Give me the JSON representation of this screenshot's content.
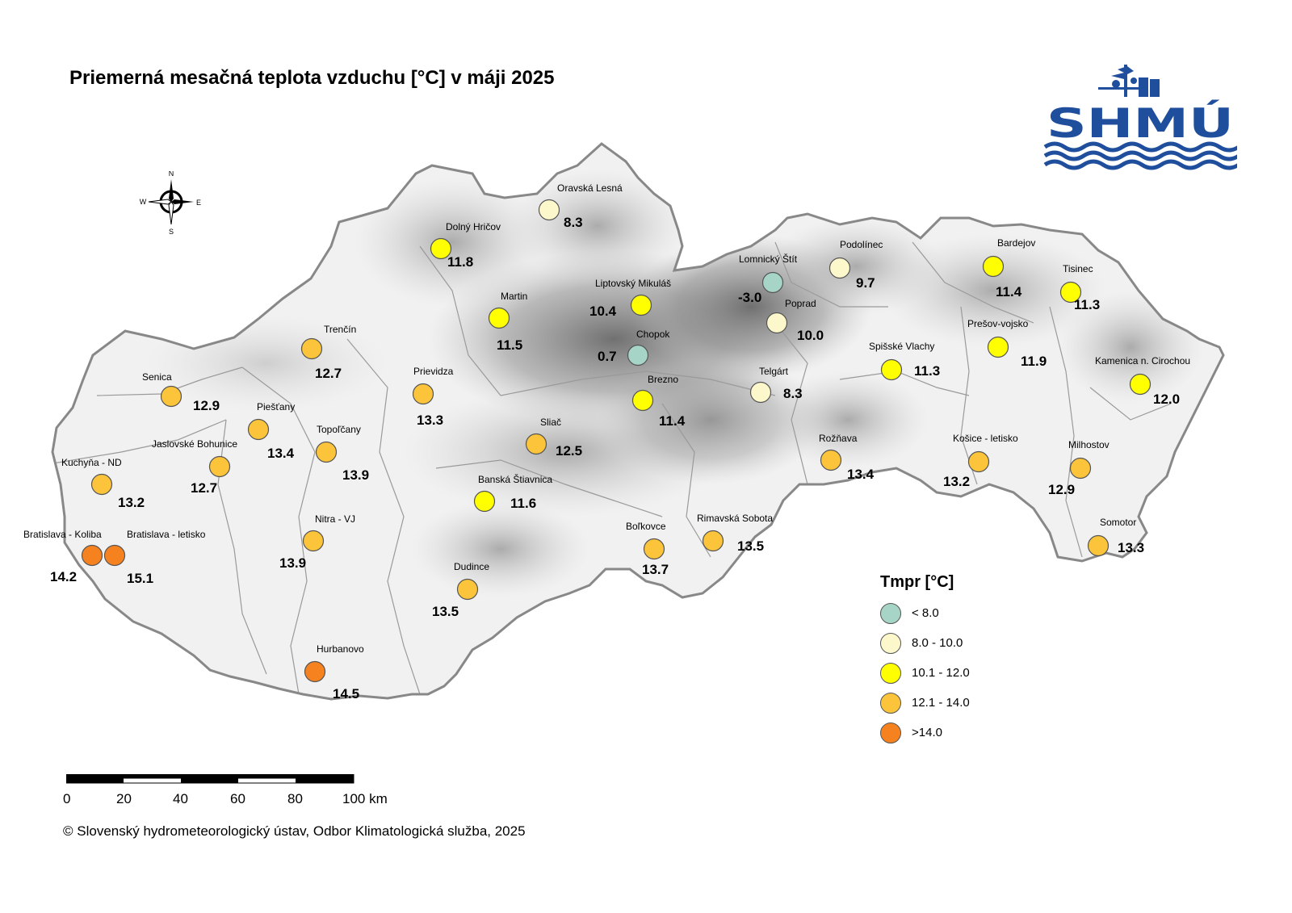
{
  "title": "Priemerná mesačná teplota vzduchu [°C] v máji 2025",
  "logo": {
    "text": "SHMÚ"
  },
  "compass": {
    "n": "N",
    "e": "E",
    "s": "S",
    "w": "W"
  },
  "colors": {
    "lt8": "#a6d4c7",
    "8to10": "#fdf8cc",
    "10to12": "#ffff00",
    "12to14": "#fbc43a",
    "gt14": "#f6821f"
  },
  "stations": [
    {
      "name": "Oravská Lesná",
      "value": "8.3",
      "class": "8to10"
    },
    {
      "name": "Dolný Hričov",
      "value": "11.8",
      "class": "10to12"
    },
    {
      "name": "Martin",
      "value": "11.5",
      "class": "10to12"
    },
    {
      "name": "Liptovský Mikuláš",
      "value": "10.4",
      "class": "10to12"
    },
    {
      "name": "Lomnický Štít",
      "value": "-3.0",
      "class": "lt8"
    },
    {
      "name": "Podolínec",
      "value": "9.7",
      "class": "8to10"
    },
    {
      "name": "Poprad",
      "value": "10.0",
      "class": "8to10"
    },
    {
      "name": "Bardejov",
      "value": "11.4",
      "class": "10to12"
    },
    {
      "name": "Tisinec",
      "value": "11.3",
      "class": "10to12"
    },
    {
      "name": "Prešov-vojsko",
      "value": "11.9",
      "class": "10to12"
    },
    {
      "name": "Kamenica n. Cirochou",
      "value": "12.0",
      "class": "10to12"
    },
    {
      "name": "Chopok",
      "value": "0.7",
      "class": "lt8"
    },
    {
      "name": "Trenčín",
      "value": "12.7",
      "class": "12to14"
    },
    {
      "name": "Senica",
      "value": "12.9",
      "class": "12to14"
    },
    {
      "name": "Prievidza",
      "value": "13.3",
      "class": "12to14"
    },
    {
      "name": "Piešťany",
      "value": "13.4",
      "class": "12to14"
    },
    {
      "name": "Spišské Vlachy",
      "value": "11.3",
      "class": "10to12"
    },
    {
      "name": "Telgárt",
      "value": "8.3",
      "class": "8to10"
    },
    {
      "name": "Brezno",
      "value": "11.4",
      "class": "10to12"
    },
    {
      "name": "Jaslovské Bohunice",
      "value": "12.7",
      "class": "12to14"
    },
    {
      "name": "Topoľčany",
      "value": "13.9",
      "class": "12to14"
    },
    {
      "name": "Sliač",
      "value": "12.5",
      "class": "12to14"
    },
    {
      "name": "Rožňava",
      "value": "13.4",
      "class": "12to14"
    },
    {
      "name": "Košice - letisko",
      "value": "13.2",
      "class": "12to14"
    },
    {
      "name": "Milhostov",
      "value": "12.9",
      "class": "12to14"
    },
    {
      "name": "Kuchyňa - ND",
      "value": "13.2",
      "class": "12to14"
    },
    {
      "name": "Banská Štiavnica",
      "value": "11.6",
      "class": "10to12"
    },
    {
      "name": "Nitra - VJ",
      "value": "13.9",
      "class": "12to14"
    },
    {
      "name": "Bratislava - Koliba",
      "value": "14.2",
      "class": "gt14"
    },
    {
      "name": "Bratislava - letisko",
      "value": "15.1",
      "class": "gt14"
    },
    {
      "name": "Boľkovce",
      "value": "13.7",
      "class": "12to14"
    },
    {
      "name": "Rimavská Sobota",
      "value": "13.5",
      "class": "12to14"
    },
    {
      "name": "Somotor",
      "value": "13.3",
      "class": "12to14"
    },
    {
      "name": "Dudince",
      "value": "13.5",
      "class": "12to14"
    },
    {
      "name": "Hurbanovo",
      "value": "14.5",
      "class": "gt14"
    }
  ],
  "legend": {
    "title": "Tmpr [°C]",
    "items": [
      {
        "label": "< 8.0",
        "color": "#a6d4c7"
      },
      {
        "label": "8.0 - 10.0",
        "color": "#fdf8cc"
      },
      {
        "label": "10.1 - 12.0",
        "color": "#ffff00"
      },
      {
        "label": "12.1 - 14.0",
        "color": "#fbc43a"
      },
      {
        "label": ">14.0",
        "color": "#f6821f"
      }
    ]
  },
  "scalebar": {
    "labels": [
      "0",
      "20",
      "40",
      "60",
      "80",
      "100 km"
    ]
  },
  "footer": "© Slovenský hydrometeorologický ústav, Odbor Klimatologická služba, 2025"
}
